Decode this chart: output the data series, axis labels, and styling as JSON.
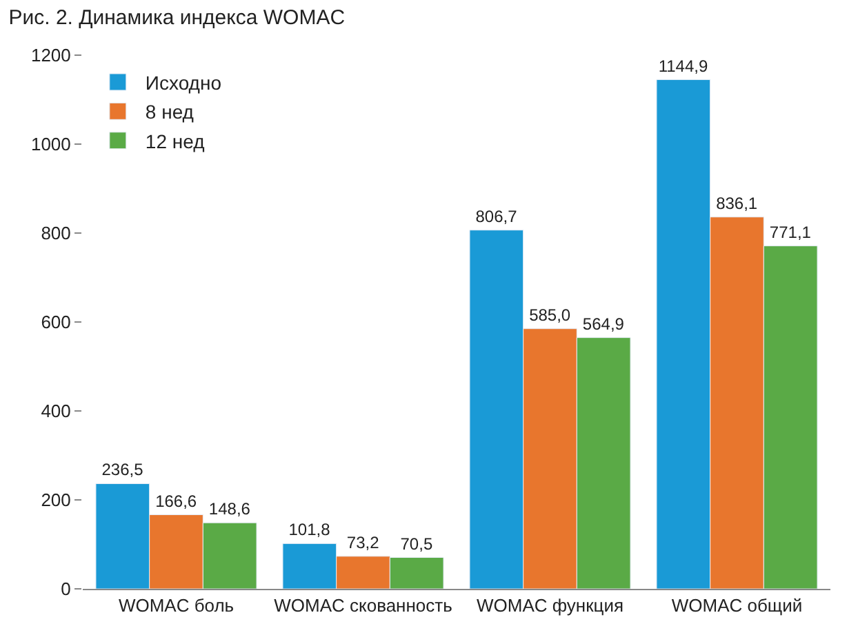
{
  "chart_data": {
    "type": "bar",
    "title": "Рис. 2. Динамика индекса WOMAC",
    "categories": [
      "WOMAC боль",
      "WOMAC скованность",
      "WOMAC функция",
      "WOMAC общий"
    ],
    "series": [
      {
        "name": "Исходно",
        "color": "#1a9ad6",
        "values": [
          236.5,
          101.8,
          806.7,
          1144.9
        ],
        "value_labels": [
          "236,5",
          "101,8",
          "806,7",
          "1144,9"
        ]
      },
      {
        "name": "8 нед",
        "color": "#e8762d",
        "values": [
          166.6,
          73.2,
          585.0,
          836.1
        ],
        "value_labels": [
          "166,6",
          "73,2",
          "585,0",
          "836,1"
        ]
      },
      {
        "name": "12 нед",
        "color": "#5aaa46",
        "values": [
          148.6,
          70.5,
          564.9,
          771.1
        ],
        "value_labels": [
          "148,6",
          "70,5",
          "564,9",
          "771,1"
        ]
      }
    ],
    "ylim": [
      0,
      1200
    ],
    "yticks": [
      0,
      200,
      400,
      600,
      800,
      1000,
      1200
    ],
    "grid": false,
    "legend": "top left"
  }
}
